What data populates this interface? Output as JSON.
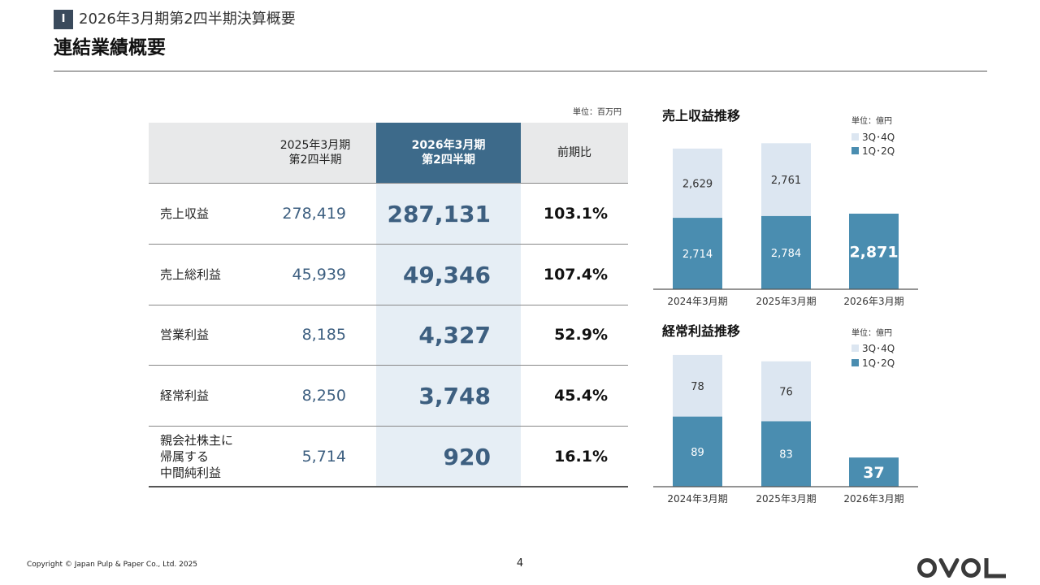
{
  "section": {
    "badge": "I",
    "title": "2026年3月期第2四半期決算概要"
  },
  "page_title": "連結業績概要",
  "table": {
    "unit_note": "単位：百万円",
    "headers": {
      "prev_line1": "2025年3月期",
      "prev_line2": "第2四半期",
      "cur_line1": "2026年3月期",
      "cur_line2": "第2四半期",
      "ratio": "前期比"
    },
    "rows": [
      {
        "label": [
          "売上収益"
        ],
        "prev": "278,419",
        "cur": "287,131",
        "ratio": "103.1%"
      },
      {
        "label": [
          "売上総利益"
        ],
        "prev": "45,939",
        "cur": "49,346",
        "ratio": "107.4%"
      },
      {
        "label": [
          "営業利益"
        ],
        "prev": "8,185",
        "cur": "4,327",
        "ratio": "52.9%"
      },
      {
        "label": [
          "経常利益"
        ],
        "prev": "8,250",
        "cur": "3,748",
        "ratio": "45.4%"
      },
      {
        "label": [
          "親会社株主に",
          "帰属する",
          "中間純利益"
        ],
        "prev": "5,714",
        "cur": "920",
        "ratio": "16.1%"
      }
    ]
  },
  "chart_data": [
    {
      "type": "bar",
      "stacked": true,
      "title": "売上収益推移",
      "unit": "単位：億円",
      "categories": [
        "2024年3月期",
        "2025年3月期",
        "2026年3月期"
      ],
      "series": [
        {
          "name": "1Q･2Q",
          "color": "#4a8db0",
          "values": [
            2714,
            2784,
            2871
          ],
          "labels": [
            "2,714",
            "2,784",
            "2,871"
          ]
        },
        {
          "name": "3Q･4Q",
          "color": "#dce6f1",
          "values": [
            2629,
            2761,
            null
          ],
          "labels": [
            "2,629",
            "2,761",
            ""
          ]
        }
      ],
      "highlight_last": true
    },
    {
      "type": "bar",
      "stacked": true,
      "title": "経常利益推移",
      "unit": "単位：億円",
      "categories": [
        "2024年3月期",
        "2025年3月期",
        "2026年3月期"
      ],
      "series": [
        {
          "name": "1Q･2Q",
          "color": "#4a8db0",
          "values": [
            89,
            83,
            37
          ],
          "labels": [
            "89",
            "83",
            "37"
          ]
        },
        {
          "name": "3Q･4Q",
          "color": "#dce6f1",
          "values": [
            78,
            76,
            null
          ],
          "labels": [
            "78",
            "76",
            ""
          ]
        }
      ],
      "highlight_last": true
    }
  ],
  "footer": {
    "copyright": "Copyright © Japan Pulp & Paper Co., Ltd. 2025",
    "page_number": "4",
    "logo_text": "OVOL"
  }
}
